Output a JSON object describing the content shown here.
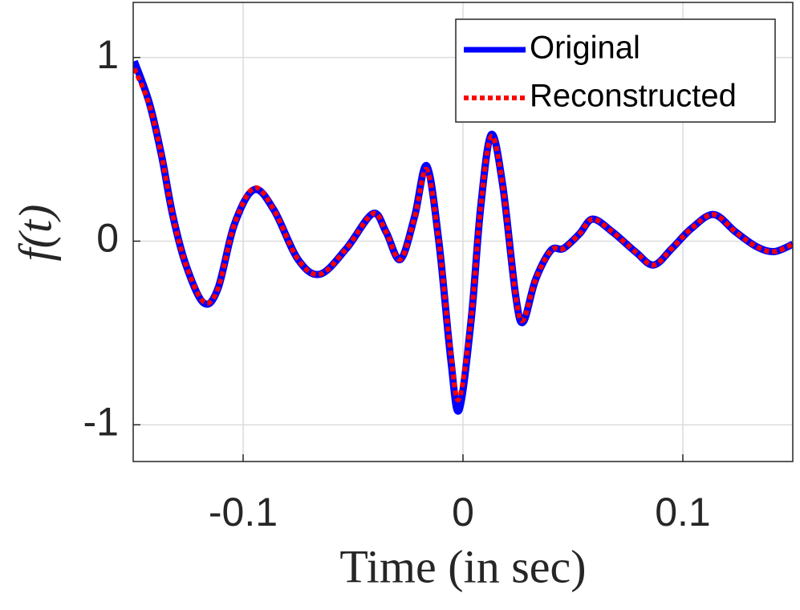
{
  "chart_data": {
    "type": "line",
    "xlabel": "Time (in sec)",
    "ylabel": "f(t)",
    "xlim": [
      -0.15,
      0.15
    ],
    "ylim": [
      -1.2,
      1.3
    ],
    "xticks": [
      -0.1,
      0,
      0.1
    ],
    "yticks": [
      -1,
      0,
      1
    ],
    "grid": true,
    "legend": "northeast",
    "series": [
      {
        "name": "Original",
        "color": "#0000ff",
        "style": "solid",
        "x": [
          -0.1495,
          -0.1426,
          -0.137,
          -0.132,
          -0.126,
          -0.118,
          -0.1115,
          -0.104,
          -0.095,
          -0.086,
          -0.075,
          -0.065,
          -0.053,
          -0.041,
          -0.035,
          -0.0285,
          -0.022,
          -0.0165,
          -0.011,
          -0.0055,
          -0.0018,
          0.0037,
          0.008,
          0.0128,
          0.018,
          0.024,
          0.0274,
          0.033,
          0.04,
          0.0457,
          0.053,
          0.059,
          0.068,
          0.0786,
          0.0867,
          0.095,
          0.104,
          0.114,
          0.124,
          0.1335,
          0.1415,
          0.15
        ],
        "values": [
          0.98,
          0.75,
          0.46,
          0.14,
          -0.13,
          -0.336,
          -0.26,
          0.09,
          0.28,
          0.17,
          -0.1,
          -0.18,
          -0.04,
          0.15,
          0.05,
          -0.1,
          0.135,
          0.41,
          0.0,
          -0.65,
          -0.92,
          -0.43,
          0.18,
          0.58,
          0.31,
          -0.3,
          -0.44,
          -0.21,
          -0.05,
          -0.04,
          0.04,
          0.12,
          0.05,
          -0.06,
          -0.13,
          -0.04,
          0.07,
          0.145,
          0.05,
          -0.03,
          -0.057,
          -0.017
        ]
      },
      {
        "name": "Reconstructed",
        "color": "#ff0000",
        "style": "dotted",
        "x": [
          -0.1495,
          -0.1426,
          -0.137,
          -0.132,
          -0.126,
          -0.118,
          -0.1115,
          -0.104,
          -0.095,
          -0.086,
          -0.075,
          -0.065,
          -0.053,
          -0.041,
          -0.035,
          -0.0285,
          -0.022,
          -0.0165,
          -0.011,
          -0.0055,
          -0.0018,
          0.0037,
          0.008,
          0.0128,
          0.018,
          0.024,
          0.0274,
          0.033,
          0.04,
          0.0457,
          0.053,
          0.059,
          0.068,
          0.0786,
          0.0867,
          0.095,
          0.104,
          0.114,
          0.124,
          0.1335,
          0.1415,
          0.15
        ],
        "values": [
          0.94,
          0.74,
          0.46,
          0.14,
          -0.13,
          -0.33,
          -0.26,
          0.09,
          0.29,
          0.17,
          -0.1,
          -0.18,
          -0.04,
          0.15,
          0.05,
          -0.1,
          0.13,
          0.39,
          0.0,
          -0.62,
          -0.86,
          -0.42,
          0.18,
          0.57,
          0.31,
          -0.3,
          -0.43,
          -0.21,
          -0.05,
          -0.04,
          0.04,
          0.12,
          0.05,
          -0.06,
          -0.13,
          -0.04,
          0.07,
          0.145,
          0.05,
          -0.03,
          -0.057,
          -0.017
        ]
      }
    ]
  }
}
